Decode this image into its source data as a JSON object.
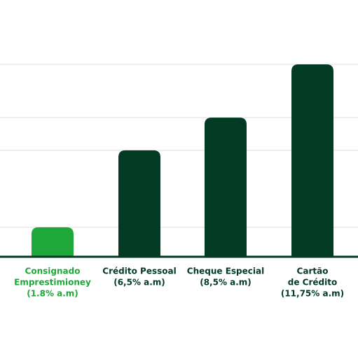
{
  "chart_data": {
    "type": "bar",
    "categories": [
      [
        "Consignado",
        "Emprestimioney",
        "(1.8% a.m)"
      ],
      [
        "Crédito Pessoal",
        "(6,5% a.m)"
      ],
      [
        "Cheque Especial",
        "(8,5% a.m)"
      ],
      [
        "Cartão",
        "de Crédito",
        "(11,75% a.m)"
      ]
    ],
    "values": [
      1.8,
      6.5,
      8.5,
      11.75
    ],
    "colors": [
      "#1fa83a",
      "#033a24",
      "#033a24",
      "#033a24"
    ],
    "grid": true
  }
}
